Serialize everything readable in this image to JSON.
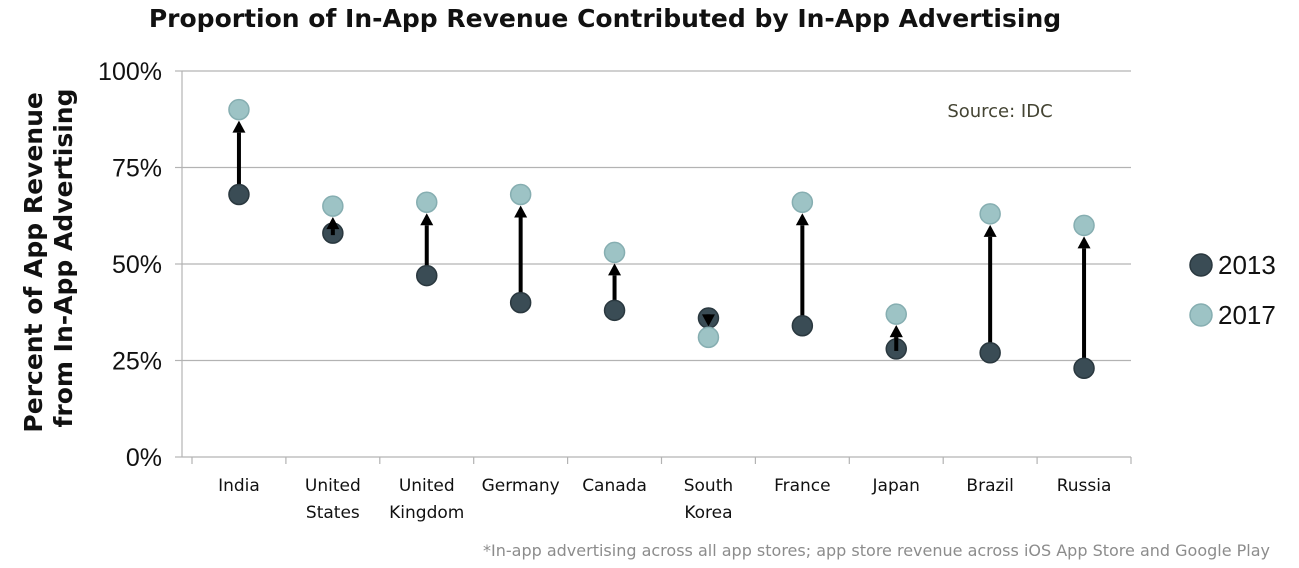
{
  "chart_data": {
    "type": "scatter",
    "title": "Proportion of In-App Revenue Contributed by In-App Advertising",
    "ylabel": [
      "Percent of App Revenue",
      "from In-App Advertising"
    ],
    "xlabel": "",
    "ylim": [
      0,
      100
    ],
    "yticks": [
      "0%",
      "25%",
      "50%",
      "75%",
      "100%"
    ],
    "grid": true,
    "legend_position": "right",
    "categories": [
      [
        "India"
      ],
      [
        "United",
        "States"
      ],
      [
        "United",
        "Kingdom"
      ],
      [
        "Germany"
      ],
      [
        "Canada"
      ],
      [
        "South",
        "Korea"
      ],
      [
        "France"
      ],
      [
        "Japan"
      ],
      [
        "Brazil"
      ],
      [
        "Russia"
      ]
    ],
    "series": [
      {
        "name": "2013",
        "color": "#3a4c55",
        "values": [
          68,
          58,
          47,
          40,
          38,
          36,
          34,
          28,
          27,
          23
        ]
      },
      {
        "name": "2017",
        "color": "#9dc3c5",
        "values": [
          90,
          65,
          66,
          68,
          53,
          31,
          66,
          37,
          63,
          60
        ]
      }
    ],
    "annotation": "Source: IDC",
    "footnote": "*In-app advertising across all app stores; app store revenue across iOS App Store and Google Play"
  }
}
